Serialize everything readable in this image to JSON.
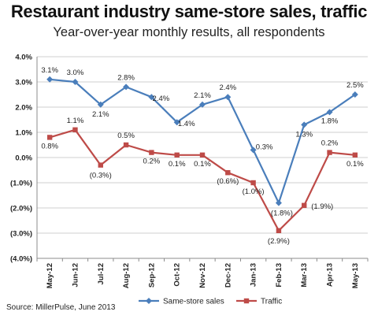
{
  "chart_data": {
    "type": "line",
    "title": "Restaurant industry same-store sales, traffic",
    "subtitle": "Year-over-year monthly results, all respondents",
    "source": "Source: MillerPulse, June 2013",
    "categories": [
      "May-12",
      "Jun-12",
      "Jul-12",
      "Aug-12",
      "Sep-12",
      "Oct-12",
      "Nov-12",
      "Dec-12",
      "Jan-13",
      "Feb-13",
      "Mar-13",
      "Apr-13",
      "May-13"
    ],
    "ylim": [
      -4.0,
      4.0
    ],
    "y_ticks": [
      "4.0%",
      "3.0%",
      "2.0%",
      "1.0%",
      "0.0%",
      "(1.0%)",
      "(2.0%)",
      "(3.0%)",
      "(4.0%)"
    ],
    "grid": "horizontal",
    "legend_position": "bottom",
    "series": [
      {
        "name": "Same-store sales",
        "color": "#4a7ebb",
        "marker": "diamond",
        "values": [
          3.1,
          3.0,
          2.1,
          2.8,
          2.4,
          1.4,
          2.1,
          2.4,
          0.3,
          -1.8,
          1.3,
          1.8,
          2.5
        ],
        "labels": [
          "3.1%",
          "3.0%",
          "2.1%",
          "2.8%",
          "2.4%",
          "1.4%",
          "2.1%",
          "2.4%",
          "0.3%",
          "(1.8%)",
          "1.3%",
          "1.8%",
          "2.5%"
        ]
      },
      {
        "name": "Traffic",
        "color": "#be4b48",
        "marker": "square",
        "values": [
          0.8,
          1.1,
          -0.3,
          0.5,
          0.2,
          0.1,
          0.1,
          -0.6,
          -1.0,
          -2.9,
          -1.9,
          0.2,
          0.1
        ],
        "labels": [
          "0.8%",
          "1.1%",
          "(0.3%)",
          "0.5%",
          "0.2%",
          "0.1%",
          "0.1%",
          "(0.6%)",
          "(1.0%)",
          "(2.9%)",
          "(1.9%)",
          "0.2%",
          "0.1%"
        ]
      }
    ]
  }
}
